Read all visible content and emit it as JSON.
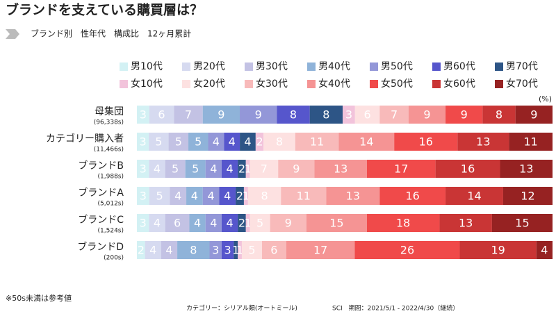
{
  "chart_data": {
    "type": "stacked_bar_h",
    "title": "ブランドを支えている購買層は？",
    "subtitle": "ブランド別　性年代　構成比　12ヶ月累計",
    "unit_label": "(%)",
    "categories": [
      "母集団",
      "カテゴリー購入者",
      "ブランドB",
      "ブランドA",
      "ブランドC",
      "ブランドD"
    ],
    "sample_sizes": [
      "(96,338s)",
      "(11,466s)",
      "(1,988s)",
      "(5,012s)",
      "(1,524s)",
      "(200s)"
    ],
    "series": [
      {
        "name": "男10代",
        "color": "#d3f1f4",
        "values": [
          3,
          3,
          3,
          3,
          3,
          2
        ]
      },
      {
        "name": "男20代",
        "color": "#d6daf0",
        "values": [
          6,
          5,
          4,
          5,
          4,
          4
        ]
      },
      {
        "name": "男30代",
        "color": "#c3c2e4",
        "values": [
          7,
          5,
          5,
          4,
          6,
          4
        ]
      },
      {
        "name": "男40代",
        "color": "#8fb3d9",
        "values": [
          9,
          5,
          5,
          4,
          4,
          8
        ]
      },
      {
        "name": "男50代",
        "color": "#9397d8",
        "values": [
          9,
          4,
          4,
          4,
          4,
          3
        ]
      },
      {
        "name": "男60代",
        "color": "#5656cc",
        "values": [
          8,
          4,
          4,
          4,
          4,
          3
        ]
      },
      {
        "name": "男70代",
        "color": "#2d5586",
        "values": [
          8,
          4,
          2,
          2,
          2,
          1
        ]
      },
      {
        "name": "女10代",
        "color": "#f2c3db",
        "values": [
          3,
          2,
          1,
          1,
          1,
          1
        ]
      },
      {
        "name": "女20代",
        "color": "#fde1e1",
        "values": [
          6,
          8,
          7,
          8,
          5,
          5
        ]
      },
      {
        "name": "女30代",
        "color": "#f8baba",
        "values": [
          7,
          11,
          9,
          11,
          9,
          6
        ]
      },
      {
        "name": "女40代",
        "color": "#f59494",
        "values": [
          9,
          14,
          13,
          13,
          15,
          17
        ]
      },
      {
        "name": "女50代",
        "color": "#f04a4a",
        "values": [
          9,
          16,
          17,
          16,
          18,
          26
        ]
      },
      {
        "name": "女60代",
        "color": "#c93535",
        "values": [
          8,
          13,
          16,
          14,
          13,
          19
        ]
      },
      {
        "name": "女70代",
        "color": "#962222",
        "values": [
          9,
          11,
          13,
          12,
          15,
          4
        ]
      }
    ],
    "footnote": "※50s未満は参考値",
    "source": "カテゴリー：シリアル類(オートミール)",
    "period": "SCI　期間：2021/5/1 - 2022/4/30（継続）"
  }
}
